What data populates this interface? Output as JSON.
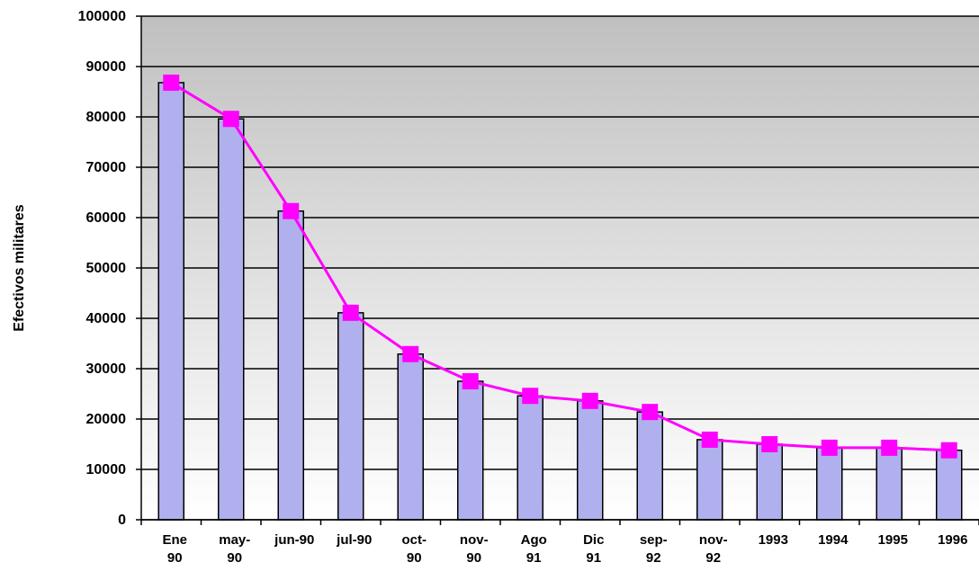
{
  "chart_data": {
    "type": "bar",
    "y_label": "Efectivos militares",
    "categories": [
      "Ene\n90",
      "may-\n90",
      "jun-90",
      "jul-90",
      "oct-\n90",
      "nov-\n90",
      "Ago\n91",
      "Dic\n91",
      "sep-\n92",
      "nov-\n92",
      "1993",
      "1994",
      "1995",
      "1996"
    ],
    "values": [
      86800,
      79600,
      61300,
      41100,
      32900,
      27500,
      24600,
      23600,
      21400,
      15900,
      15000,
      14300,
      14300,
      13800
    ],
    "color": "#b0b0ee",
    "overlay_line": true,
    "line_color": "#ff00ff",
    "ylim": [
      0,
      100000
    ],
    "yticks": [
      0,
      10000,
      20000,
      30000,
      40000,
      50000,
      60000,
      70000,
      80000,
      90000,
      100000
    ],
    "grid": true
  }
}
